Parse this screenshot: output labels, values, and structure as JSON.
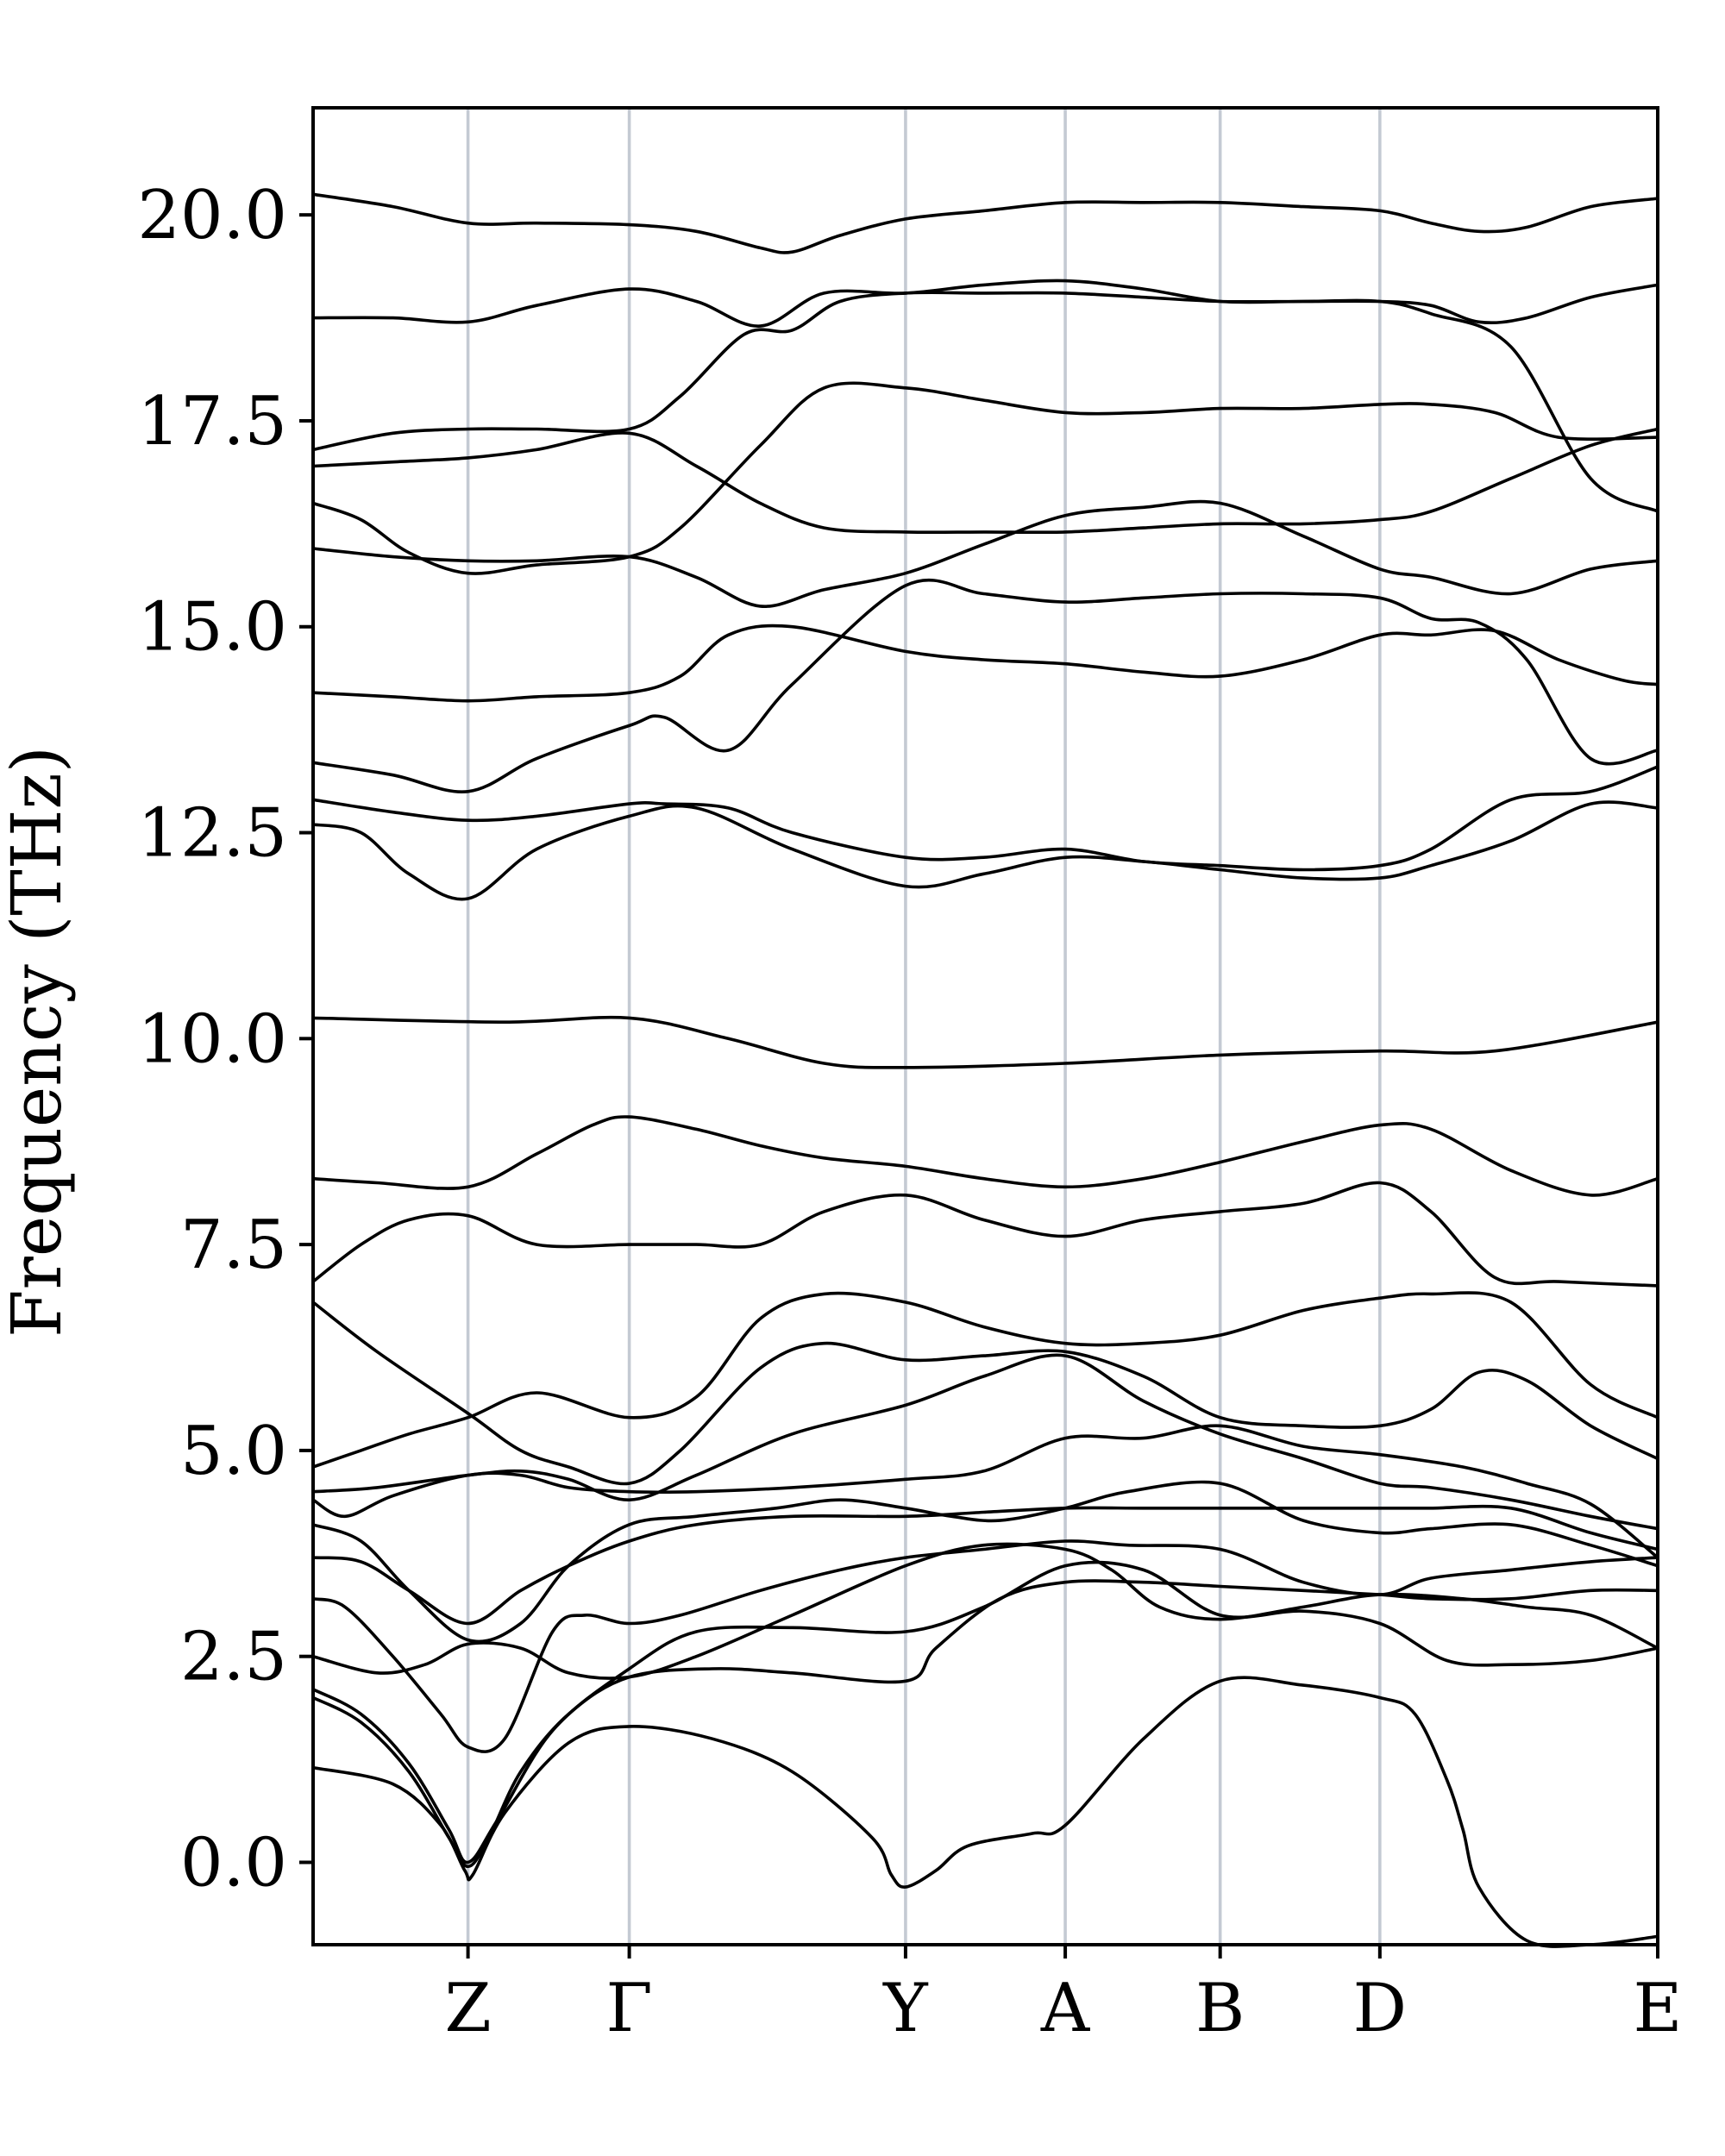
{
  "chart_data": {
    "type": "line",
    "ylabel": "Frequency (THz)",
    "ylim": [
      -1.0,
      21.3
    ],
    "yticks": [
      "0.0",
      "2.5",
      "5.0",
      "7.5",
      "10.0",
      "12.5",
      "15.0",
      "17.5",
      "20.0"
    ],
    "ytick_values": [
      0.0,
      2.5,
      5.0,
      7.5,
      10.0,
      12.5,
      15.0,
      17.5,
      20.0
    ],
    "xlim": [
      0,
      8.42
    ],
    "kpoints": [
      {
        "label": "Z",
        "x": 0.97
      },
      {
        "label": "Γ",
        "x": 1.98
      },
      {
        "label": "Y",
        "x": 3.71
      },
      {
        "label": "A",
        "x": 4.71
      },
      {
        "label": "B",
        "x": 5.68
      },
      {
        "label": "D",
        "x": 6.68
      },
      {
        "label": "E",
        "x": 8.42
      }
    ],
    "grid": false,
    "series_color": "#000000",
    "kline_color": "#c4cad3",
    "series": [
      {
        "x": [
          0,
          0.5,
          0.8,
          0.95,
          1.0,
          1.2,
          1.6,
          1.98,
          2.5,
          3.0,
          3.5,
          3.62,
          3.71,
          3.9,
          4.1,
          4.5,
          4.71,
          5.2,
          5.68,
          6.2,
          6.68,
          6.9,
          7.1,
          7.2,
          7.3,
          7.6,
          8.0,
          8.42
        ],
        "y": [
          1.15,
          0.95,
          0.45,
          -0.1,
          -0.15,
          0.6,
          1.45,
          1.65,
          1.5,
          1.1,
          0.3,
          -0.15,
          -0.3,
          -0.1,
          0.2,
          0.35,
          0.45,
          1.5,
          2.2,
          2.15,
          2.0,
          1.8,
          1.0,
          0.4,
          -0.3,
          -0.95,
          -1.0,
          -0.9
        ]
      },
      {
        "x": [
          0,
          0.3,
          0.6,
          0.85,
          0.97,
          1.1,
          1.3,
          1.6,
          1.98,
          2.5,
          3.0,
          3.71,
          3.9,
          4.3,
          4.71,
          5.2,
          5.68,
          6.2,
          6.68,
          7.0,
          7.5,
          8.0,
          8.42
        ],
        "y": [
          2.0,
          1.7,
          1.1,
          0.3,
          -0.05,
          0.3,
          1.1,
          1.8,
          2.25,
          2.35,
          2.3,
          2.2,
          2.6,
          3.2,
          3.4,
          3.4,
          3.35,
          3.3,
          3.25,
          3.2,
          3.2,
          3.3,
          3.3
        ]
      },
      {
        "x": [
          0,
          0.3,
          0.6,
          0.85,
          0.97,
          1.15,
          1.5,
          1.98,
          2.4,
          3.0,
          3.71,
          4.2,
          4.71,
          5.2,
          5.68,
          6.2,
          6.68,
          7.1,
          7.5,
          8.0,
          8.42
        ],
        "y": [
          2.1,
          1.8,
          1.2,
          0.4,
          0.0,
          0.5,
          1.6,
          2.35,
          2.8,
          2.85,
          2.8,
          3.1,
          3.6,
          3.55,
          3.0,
          3.05,
          2.9,
          2.45,
          2.4,
          2.45,
          2.6
        ]
      },
      {
        "x": [
          0,
          0.4,
          0.7,
          0.97,
          1.3,
          1.6,
          1.98,
          2.4,
          3.0,
          3.71,
          4.2,
          4.71,
          5.0,
          5.3,
          5.68,
          6.2,
          6.68,
          7.2,
          7.6,
          8.0,
          8.42
        ],
        "y": [
          2.5,
          2.3,
          2.4,
          2.65,
          2.6,
          2.3,
          2.25,
          2.5,
          3.0,
          3.6,
          3.85,
          3.8,
          3.55,
          3.1,
          2.95,
          3.1,
          3.25,
          3.2,
          3.1,
          3.0,
          2.6
        ]
      },
      {
        "x": [
          0,
          0.2,
          0.5,
          0.8,
          0.97,
          1.2,
          1.5,
          1.7,
          1.98,
          2.3,
          2.8,
          3.3,
          3.71,
          4.2,
          4.71,
          5.1,
          5.68,
          6.2,
          6.68,
          7.0,
          7.5,
          8.0,
          8.42
        ],
        "y": [
          3.2,
          3.1,
          2.5,
          1.8,
          1.4,
          1.5,
          2.8,
          3.0,
          2.9,
          3.0,
          3.3,
          3.55,
          3.7,
          3.8,
          3.9,
          3.85,
          3.8,
          3.4,
          3.25,
          3.45,
          3.55,
          3.65,
          3.7
        ]
      },
      {
        "x": [
          0,
          0.3,
          0.6,
          0.97,
          1.3,
          1.6,
          1.98,
          2.4,
          2.9,
          3.3,
          3.71,
          4.0,
          4.3,
          4.71,
          5.1,
          5.68,
          6.2,
          6.68,
          7.0,
          7.5,
          8.0,
          8.42
        ],
        "y": [
          4.1,
          3.9,
          3.3,
          2.7,
          2.9,
          3.6,
          4.1,
          4.2,
          4.3,
          4.4,
          4.3,
          4.2,
          4.15,
          4.3,
          4.5,
          4.6,
          4.15,
          4.0,
          4.05,
          4.1,
          3.85,
          3.6
        ]
      },
      {
        "x": [
          0,
          0.3,
          0.6,
          0.97,
          1.3,
          1.6,
          1.98,
          2.4,
          3.0,
          3.71,
          4.2,
          4.71,
          5.2,
          5.68,
          6.2,
          6.68,
          7.0,
          7.5,
          8.0,
          8.42
        ],
        "y": [
          3.7,
          3.65,
          3.3,
          2.9,
          3.3,
          3.6,
          3.9,
          4.1,
          4.2,
          4.2,
          4.25,
          4.3,
          4.3,
          4.3,
          4.3,
          4.3,
          4.3,
          4.3,
          4.0,
          3.8
        ]
      },
      {
        "x": [
          0,
          0.2,
          0.5,
          0.97,
          1.3,
          1.6,
          1.98,
          2.4,
          3.0,
          3.71,
          4.2,
          4.71,
          5.2,
          5.68,
          6.2,
          6.68,
          7.2,
          7.6,
          8.0,
          8.42
        ],
        "y": [
          4.4,
          4.2,
          4.45,
          4.7,
          4.7,
          4.55,
          4.5,
          4.5,
          4.55,
          4.65,
          4.75,
          5.15,
          5.15,
          5.3,
          5.05,
          4.95,
          4.8,
          4.6,
          4.35,
          3.7
        ]
      },
      {
        "x": [
          0,
          0.4,
          0.97,
          1.3,
          1.6,
          1.98,
          2.4,
          3.0,
          3.71,
          4.2,
          4.71,
          5.2,
          5.68,
          6.2,
          6.68,
          7.0,
          7.5,
          8.0,
          8.42
        ],
        "y": [
          4.5,
          4.55,
          4.7,
          4.75,
          4.65,
          4.4,
          4.7,
          5.2,
          5.55,
          5.9,
          6.15,
          5.6,
          5.2,
          4.9,
          4.6,
          4.55,
          4.4,
          4.2,
          4.05
        ]
      },
      {
        "x": [
          0,
          0.4,
          0.97,
          1.3,
          1.6,
          1.98,
          2.3,
          2.8,
          3.2,
          3.71,
          4.2,
          4.71,
          5.2,
          5.68,
          6.2,
          6.68,
          7.0,
          7.3,
          7.6,
          8.0,
          8.42
        ],
        "y": [
          6.8,
          6.2,
          5.45,
          5.0,
          4.8,
          4.6,
          5.0,
          6.0,
          6.3,
          6.1,
          6.15,
          6.2,
          5.9,
          5.4,
          5.3,
          5.3,
          5.5,
          5.95,
          5.85,
          5.3,
          4.9
        ]
      },
      {
        "x": [
          0,
          0.3,
          0.6,
          0.97,
          1.4,
          1.98,
          2.4,
          2.8,
          3.2,
          3.71,
          4.2,
          4.71,
          5.2,
          5.68,
          6.2,
          6.68,
          7.0,
          7.5,
          8.0,
          8.42
        ],
        "y": [
          4.8,
          5.0,
          5.2,
          5.4,
          5.7,
          5.4,
          5.65,
          6.6,
          6.9,
          6.8,
          6.5,
          6.3,
          6.3,
          6.4,
          6.7,
          6.85,
          6.9,
          6.8,
          5.8,
          5.4
        ]
      },
      {
        "x": [
          0,
          0.3,
          0.6,
          0.97,
          1.4,
          1.98,
          2.4,
          2.8,
          3.2,
          3.71,
          4.2,
          4.71,
          5.2,
          5.68,
          6.2,
          6.68,
          7.0,
          7.4,
          7.8,
          8.42
        ],
        "y": [
          7.05,
          7.5,
          7.8,
          7.85,
          7.5,
          7.5,
          7.5,
          7.5,
          7.9,
          8.1,
          7.8,
          7.6,
          7.8,
          7.9,
          8.0,
          8.25,
          7.9,
          7.1,
          7.05,
          7.0
        ]
      },
      {
        "x": [
          0,
          0.4,
          0.97,
          1.4,
          1.75,
          1.98,
          2.4,
          2.8,
          3.2,
          3.71,
          4.2,
          4.71,
          5.2,
          5.68,
          6.2,
          6.68,
          7.0,
          7.5,
          8.0,
          8.42
        ],
        "y": [
          8.3,
          8.25,
          8.2,
          8.6,
          8.95,
          9.05,
          8.9,
          8.7,
          8.55,
          8.45,
          8.3,
          8.2,
          8.3,
          8.5,
          8.75,
          8.95,
          8.9,
          8.4,
          8.1,
          8.3
        ]
      },
      {
        "x": [
          0,
          1.2,
          1.98,
          2.6,
          3.2,
          3.71,
          4.71,
          5.68,
          6.68,
          7.4,
          8.42
        ],
        "y": [
          10.25,
          10.2,
          10.25,
          10.0,
          9.7,
          9.65,
          9.7,
          9.8,
          9.85,
          9.85,
          10.2
        ]
      },
      {
        "x": [
          0,
          0.3,
          0.6,
          0.97,
          1.4,
          1.98,
          2.4,
          3.0,
          3.71,
          4.2,
          4.71,
          5.2,
          5.68,
          6.2,
          6.68,
          7.0,
          7.5,
          8.0,
          8.42
        ],
        "y": [
          12.6,
          12.5,
          12.0,
          11.7,
          12.3,
          12.7,
          12.8,
          12.3,
          11.85,
          12.0,
          12.2,
          12.15,
          12.05,
          11.95,
          11.95,
          12.1,
          12.4,
          12.85,
          12.8
        ]
      },
      {
        "x": [
          0,
          0.5,
          0.97,
          1.4,
          1.98,
          2.2,
          2.6,
          3.0,
          3.71,
          4.2,
          4.71,
          5.2,
          5.68,
          6.2,
          6.68,
          7.0,
          7.5,
          8.0,
          8.42
        ],
        "y": [
          12.9,
          12.75,
          12.65,
          12.7,
          12.85,
          12.85,
          12.8,
          12.5,
          12.2,
          12.2,
          12.3,
          12.15,
          12.1,
          12.05,
          12.1,
          12.3,
          12.9,
          13.0,
          13.3
        ]
      },
      {
        "x": [
          0,
          0.5,
          0.97,
          1.4,
          1.98,
          2.2,
          2.6,
          3.0,
          3.71,
          4.2,
          4.71,
          5.2,
          5.68,
          6.2,
          6.68,
          7.0,
          7.3,
          7.6,
          8.0,
          8.42
        ],
        "y": [
          13.35,
          13.2,
          13.0,
          13.4,
          13.8,
          13.9,
          13.5,
          14.3,
          15.5,
          15.4,
          15.3,
          15.35,
          15.4,
          15.4,
          15.35,
          15.1,
          15.05,
          14.6,
          13.4,
          13.5
        ]
      },
      {
        "x": [
          0,
          0.5,
          0.97,
          1.4,
          1.98,
          2.3,
          2.6,
          3.0,
          3.71,
          4.2,
          4.71,
          5.2,
          5.68,
          6.2,
          6.68,
          7.0,
          7.4,
          7.8,
          8.2,
          8.42
        ],
        "y": [
          14.2,
          14.15,
          14.1,
          14.15,
          14.2,
          14.4,
          14.9,
          15.0,
          14.7,
          14.6,
          14.55,
          14.45,
          14.4,
          14.6,
          14.9,
          14.9,
          14.95,
          14.6,
          14.35,
          14.3
        ]
      },
      {
        "x": [
          0,
          0.5,
          0.97,
          1.4,
          1.98,
          2.4,
          2.8,
          3.2,
          3.71,
          4.2,
          4.71,
          5.2,
          5.68,
          6.2,
          6.68,
          7.0,
          7.5,
          8.0,
          8.42
        ],
        "y": [
          15.95,
          15.85,
          15.8,
          15.8,
          15.85,
          15.6,
          15.25,
          15.45,
          15.65,
          16.0,
          16.35,
          16.45,
          16.5,
          16.1,
          15.7,
          15.6,
          15.4,
          15.7,
          15.8
        ]
      },
      {
        "x": [
          0,
          0.3,
          0.6,
          0.97,
          1.4,
          1.98,
          2.3,
          2.8,
          3.2,
          3.71,
          4.2,
          4.71,
          5.2,
          5.68,
          6.2,
          6.68,
          7.0,
          7.4,
          7.8,
          8.42
        ],
        "y": [
          16.5,
          16.3,
          15.9,
          15.65,
          15.75,
          15.85,
          16.2,
          17.2,
          17.9,
          17.9,
          17.75,
          17.6,
          17.6,
          17.65,
          17.65,
          17.7,
          17.7,
          17.6,
          17.3,
          17.3
        ]
      },
      {
        "x": [
          0,
          0.5,
          0.97,
          1.4,
          1.98,
          2.4,
          2.8,
          3.2,
          3.71,
          4.2,
          4.71,
          5.2,
          5.68,
          6.2,
          6.68,
          7.0,
          7.5,
          8.0,
          8.42
        ],
        "y": [
          16.95,
          17.0,
          17.05,
          17.15,
          17.35,
          16.95,
          16.5,
          16.2,
          16.15,
          16.15,
          16.15,
          16.2,
          16.25,
          16.25,
          16.3,
          16.4,
          16.8,
          17.2,
          17.4
        ]
      },
      {
        "x": [
          0,
          0.5,
          0.97,
          1.4,
          1.98,
          2.3,
          2.7,
          3.0,
          3.3,
          3.71,
          4.2,
          4.71,
          5.2,
          5.68,
          6.2,
          6.68,
          7.0,
          7.5,
          8.0,
          8.42
        ],
        "y": [
          17.15,
          17.35,
          17.4,
          17.4,
          17.4,
          17.8,
          18.55,
          18.6,
          18.95,
          19.05,
          19.05,
          19.05,
          19.0,
          18.95,
          18.95,
          18.95,
          18.8,
          18.4,
          16.8,
          16.4
        ]
      },
      {
        "x": [
          0,
          0.5,
          0.97,
          1.4,
          1.98,
          2.4,
          2.8,
          3.2,
          3.71,
          4.2,
          4.71,
          5.2,
          5.68,
          6.2,
          6.68,
          7.0,
          7.3,
          7.6,
          8.0,
          8.42
        ],
        "y": [
          18.75,
          18.75,
          18.7,
          18.9,
          19.1,
          18.95,
          18.65,
          19.05,
          19.05,
          19.15,
          19.2,
          19.1,
          18.95,
          18.95,
          18.95,
          18.9,
          18.7,
          18.75,
          19.0,
          19.15
        ]
      },
      {
        "x": [
          0,
          0.5,
          0.97,
          1.4,
          1.98,
          2.4,
          2.8,
          3.0,
          3.3,
          3.71,
          4.2,
          4.71,
          5.2,
          5.68,
          6.2,
          6.68,
          7.0,
          7.3,
          7.6,
          8.0,
          8.42
        ],
        "y": [
          20.25,
          20.1,
          19.9,
          19.9,
          19.88,
          19.8,
          19.6,
          19.55,
          19.75,
          19.95,
          20.05,
          20.15,
          20.15,
          20.15,
          20.1,
          20.05,
          19.9,
          19.8,
          19.85,
          20.1,
          20.2
        ]
      }
    ]
  }
}
